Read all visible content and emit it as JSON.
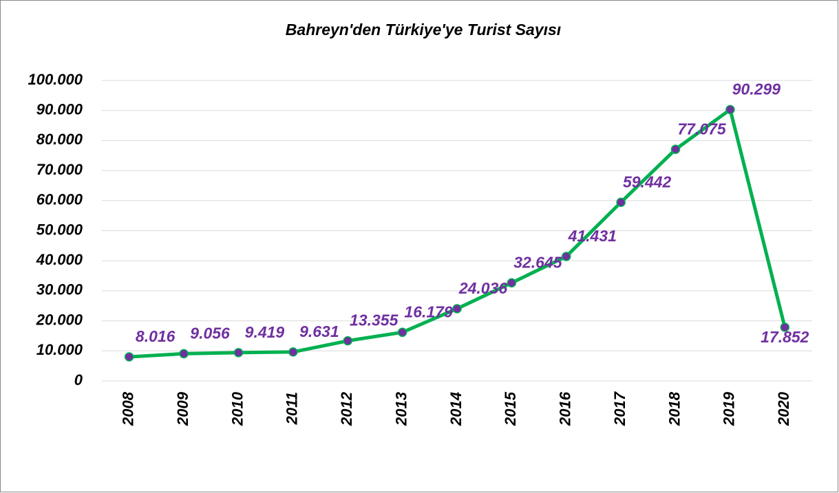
{
  "chart_data": {
    "type": "line",
    "title": "Bahreyn'den Türkiye'ye Turist Sayısı",
    "categories": [
      "2008",
      "2009",
      "2010",
      "2011",
      "2012",
      "2013",
      "2014",
      "2015",
      "2016",
      "2017",
      "2018",
      "2019",
      "2020"
    ],
    "series": [
      {
        "name": "Turist Sayısı",
        "color": "#00b050",
        "marker_color": "#7030a0",
        "values": [
          8016,
          9056,
          9419,
          9631,
          13355,
          16179,
          24036,
          32645,
          41431,
          59442,
          77075,
          90299,
          17852
        ],
        "value_labels": [
          "8.016",
          "9.056",
          "9.419",
          "9.631",
          "13.355",
          "16.179",
          "24.036",
          "32.645",
          "41.431",
          "59.442",
          "77.075",
          "90.299",
          "17.852"
        ]
      }
    ],
    "ylim": [
      0,
      100000
    ],
    "yticks": [
      0,
      {
        "value": 10000,
        "label": "10.000"
      },
      {
        "value": 20000,
        "label": "20.000"
      },
      {
        "value": 30000,
        "label": "30.000"
      },
      {
        "value": 40000,
        "label": "40.000"
      },
      {
        "value": 50000,
        "label": "50.000"
      },
      {
        "value": 60000,
        "label": "60.000"
      },
      {
        "value": 70000,
        "label": "70.000"
      },
      {
        "value": 80000,
        "label": "80.000"
      },
      {
        "value": 90000,
        "label": "90.000"
      },
      {
        "value": 100000,
        "label": "100.000"
      }
    ],
    "grid": true
  }
}
